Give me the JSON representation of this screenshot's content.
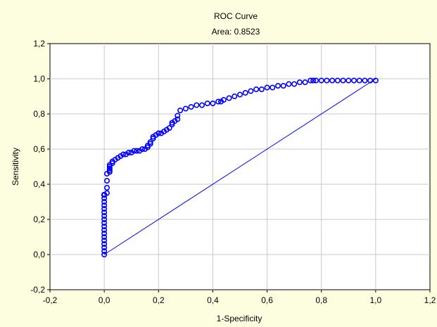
{
  "chart_data": {
    "type": "line",
    "title": "ROC Curve",
    "subtitle": "Area: 0.8523",
    "xlabel": "1-Specificity",
    "ylabel": "Sensitivity",
    "xlim": [
      -0.2,
      1.2
    ],
    "ylim": [
      -0.2,
      1.2
    ],
    "xticks": [
      "-0,2",
      "0,0",
      "0,2",
      "0,4",
      "0,6",
      "0,8",
      "1,0",
      "1,2"
    ],
    "yticks": [
      "-0,2",
      "0,0",
      "0,2",
      "0,4",
      "0,6",
      "0,8",
      "1,0",
      "1,2"
    ],
    "grid": true,
    "colors": {
      "background": "#fdfde0",
      "plot": "#ffffff",
      "series": "#0000ff",
      "grid": "#c8c8c8"
    },
    "series": [
      {
        "style": "markers",
        "x": [
          0,
          0,
          0,
          0,
          0,
          0,
          0,
          0,
          0,
          0,
          0,
          0,
          0,
          0,
          0,
          0,
          0,
          0,
          0,
          0,
          0,
          0,
          0,
          0,
          0,
          0,
          0,
          0,
          0,
          0,
          0,
          0,
          0,
          0,
          0,
          0,
          0.01,
          0.01,
          0.01,
          0.01,
          0.02,
          0.02,
          0.02,
          0.02,
          0.02,
          0.03,
          0.03,
          0.04,
          0.05,
          0.06,
          0.07,
          0.08,
          0.09,
          0.1,
          0.11,
          0.12,
          0.13,
          0.14,
          0.15,
          0.16,
          0.16,
          0.17,
          0.17,
          0.18,
          0.18,
          0.19,
          0.2,
          0.2,
          0.21,
          0.22,
          0.23,
          0.24,
          0.25,
          0.25,
          0.26,
          0.27,
          0.27,
          0.28,
          0.3,
          0.32,
          0.34,
          0.36,
          0.38,
          0.4,
          0.42,
          0.43,
          0.44,
          0.46,
          0.48,
          0.5,
          0.52,
          0.54,
          0.56,
          0.58,
          0.6,
          0.62,
          0.64,
          0.66,
          0.68,
          0.7,
          0.72,
          0.74,
          0.76,
          0.77,
          0.78,
          0.8,
          0.82,
          0.84,
          0.86,
          0.88,
          0.9,
          0.92,
          0.94,
          0.96,
          0.98,
          1.0
        ],
        "y": [
          0,
          0.02,
          0.04,
          0.06,
          0.08,
          0.1,
          0.12,
          0.14,
          0.16,
          0.18,
          0.2,
          0.22,
          0.24,
          0.26,
          0.28,
          0.3,
          0.32,
          0.34,
          0.34,
          0.34,
          0.34,
          0.34,
          0.34,
          0.34,
          0.34,
          0.34,
          0.34,
          0.34,
          0.34,
          0.34,
          0.34,
          0.34,
          0.34,
          0.34,
          0.34,
          0.34,
          0.35,
          0.38,
          0.42,
          0.46,
          0.47,
          0.48,
          0.49,
          0.5,
          0.51,
          0.52,
          0.53,
          0.54,
          0.55,
          0.56,
          0.57,
          0.57,
          0.58,
          0.58,
          0.59,
          0.59,
          0.59,
          0.6,
          0.6,
          0.61,
          0.62,
          0.63,
          0.64,
          0.66,
          0.67,
          0.68,
          0.69,
          0.69,
          0.69,
          0.7,
          0.71,
          0.72,
          0.74,
          0.75,
          0.76,
          0.77,
          0.79,
          0.82,
          0.83,
          0.84,
          0.85,
          0.85,
          0.86,
          0.86,
          0.87,
          0.87,
          0.88,
          0.89,
          0.9,
          0.91,
          0.92,
          0.93,
          0.94,
          0.94,
          0.95,
          0.95,
          0.96,
          0.96,
          0.97,
          0.97,
          0.98,
          0.98,
          0.99,
          0.99,
          0.99,
          0.99,
          0.99,
          0.99,
          0.99,
          0.99,
          0.99,
          0.99,
          0.99,
          0.99,
          0.99,
          0.99
        ]
      },
      {
        "style": "line",
        "x": [
          0,
          1
        ],
        "y": [
          0,
          1
        ]
      }
    ]
  }
}
